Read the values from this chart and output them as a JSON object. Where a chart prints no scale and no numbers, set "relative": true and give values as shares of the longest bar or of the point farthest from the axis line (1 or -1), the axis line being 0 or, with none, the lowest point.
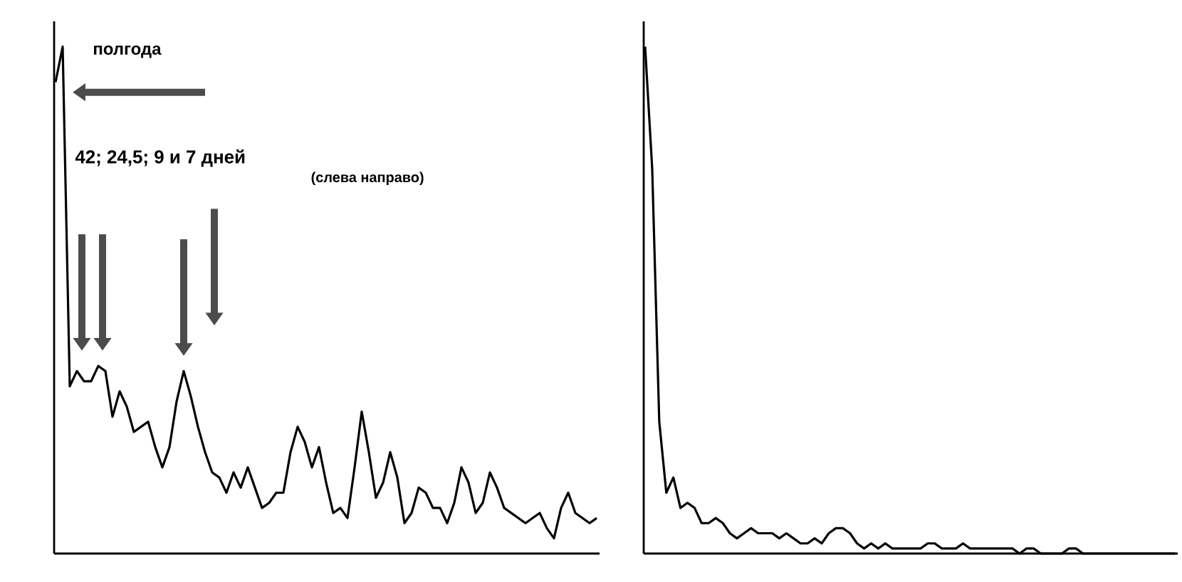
{
  "chart_data": [
    {
      "type": "line",
      "relative": true,
      "color": "#000000",
      "annotations": [
        "полгода",
        "42; 24,5; 9 и 7 дней",
        "(слева направо)"
      ],
      "categories": [
        null,
        null,
        null,
        null,
        null,
        null,
        null,
        null,
        null,
        null,
        null,
        null,
        null,
        null,
        null,
        null,
        null,
        null,
        null,
        null,
        null,
        null,
        null,
        null,
        null,
        null,
        null,
        null,
        null,
        null,
        null,
        null,
        null,
        null,
        null,
        null,
        null,
        null,
        null,
        null,
        null,
        null,
        null,
        null,
        null,
        null,
        null,
        null,
        null,
        null,
        null,
        null,
        null,
        null,
        null,
        null,
        null,
        null,
        null,
        null,
        null,
        null,
        null,
        null,
        null,
        null,
        null,
        null,
        null,
        null,
        null,
        null,
        null,
        null,
        null,
        null,
        null
      ],
      "values": [
        0.93,
        1.0,
        0.33,
        0.36,
        0.34,
        0.34,
        0.37,
        0.36,
        0.27,
        0.32,
        0.29,
        0.24,
        0.25,
        0.26,
        0.21,
        0.17,
        0.21,
        0.3,
        0.36,
        0.31,
        0.25,
        0.2,
        0.16,
        0.15,
        0.12,
        0.16,
        0.13,
        0.17,
        0.13,
        0.09,
        0.1,
        0.12,
        0.12,
        0.2,
        0.25,
        0.22,
        0.17,
        0.21,
        0.14,
        0.08,
        0.09,
        0.07,
        0.17,
        0.28,
        0.2,
        0.11,
        0.14,
        0.2,
        0.15,
        0.06,
        0.08,
        0.13,
        0.12,
        0.09,
        0.09,
        0.06,
        0.1,
        0.17,
        0.14,
        0.08,
        0.1,
        0.16,
        0.13,
        0.09,
        0.08,
        0.07,
        0.06,
        0.07,
        0.08,
        0.05,
        0.03,
        0.09,
        0.12,
        0.08,
        0.07,
        0.06,
        0.07
      ]
    },
    {
      "type": "line",
      "relative": true,
      "color": "#000000",
      "categories": [
        null,
        null,
        null,
        null,
        null,
        null,
        null,
        null,
        null,
        null,
        null,
        null,
        null,
        null,
        null,
        null,
        null,
        null,
        null,
        null,
        null,
        null,
        null,
        null,
        null,
        null,
        null,
        null,
        null,
        null,
        null,
        null,
        null,
        null,
        null,
        null,
        null,
        null,
        null,
        null,
        null,
        null,
        null,
        null,
        null,
        null,
        null,
        null,
        null,
        null,
        null,
        null,
        null,
        null,
        null,
        null,
        null,
        null,
        null,
        null,
        null,
        null,
        null,
        null,
        null,
        null,
        null,
        null,
        null,
        null,
        null,
        null,
        null,
        null,
        null,
        null
      ],
      "values": [
        1.0,
        0.76,
        0.26,
        0.12,
        0.15,
        0.09,
        0.1,
        0.09,
        0.06,
        0.06,
        0.07,
        0.06,
        0.04,
        0.03,
        0.04,
        0.05,
        0.04,
        0.04,
        0.04,
        0.03,
        0.04,
        0.03,
        0.02,
        0.02,
        0.03,
        0.02,
        0.04,
        0.05,
        0.05,
        0.04,
        0.02,
        0.01,
        0.02,
        0.01,
        0.02,
        0.01,
        0.01,
        0.01,
        0.01,
        0.01,
        0.02,
        0.02,
        0.01,
        0.01,
        0.01,
        0.02,
        0.01,
        0.01,
        0.01,
        0.01,
        0.01,
        0.01,
        0.01,
        0.0,
        0.01,
        0.01,
        0.0,
        0.0,
        0.0,
        0.0,
        0.01,
        0.01,
        0.0,
        0.0,
        0.0,
        0.0,
        0.0,
        0.0,
        0.0,
        0.0,
        0.0,
        0.0,
        0.0,
        0.0,
        0.0,
        0.0
      ]
    }
  ]
}
